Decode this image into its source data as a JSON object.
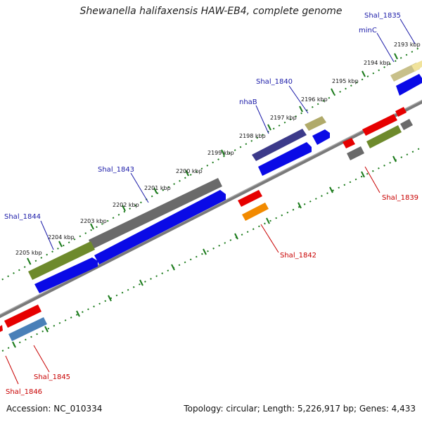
{
  "title": "Shewanella halifaxensis HAW-EB4, complete genome",
  "footer": {
    "accession": "Accession: NC_010334",
    "summary": "Topology: circular; Length: 5,226,917 bp; Genes: 4,433"
  },
  "colors": {
    "backbone": "#7a7a7a",
    "tick": "#1a7a1a",
    "cds": "#0a0ae6",
    "top_label": "#1a1aa8",
    "bottom_label": "#c80000"
  },
  "kbp_labels": [
    "2193 kbp",
    "2194 kbp",
    "2195 kbp",
    "2196 kbp",
    "2197 kbp",
    "2198 kbp",
    "2199 kbp",
    "2200 kbp",
    "2201 kbp",
    "2202 kbp",
    "2203 kbp",
    "2204 kbp",
    "2205 kbp"
  ],
  "genes_top": [
    "Shal_1835",
    "minC",
    "Shal_1840",
    "nhaB",
    "Shal_1843",
    "Shal_1844"
  ],
  "genes_bottom": [
    "Shal_1839",
    "Shal_1842",
    "Shal_1845",
    "Shal_1846"
  ]
}
